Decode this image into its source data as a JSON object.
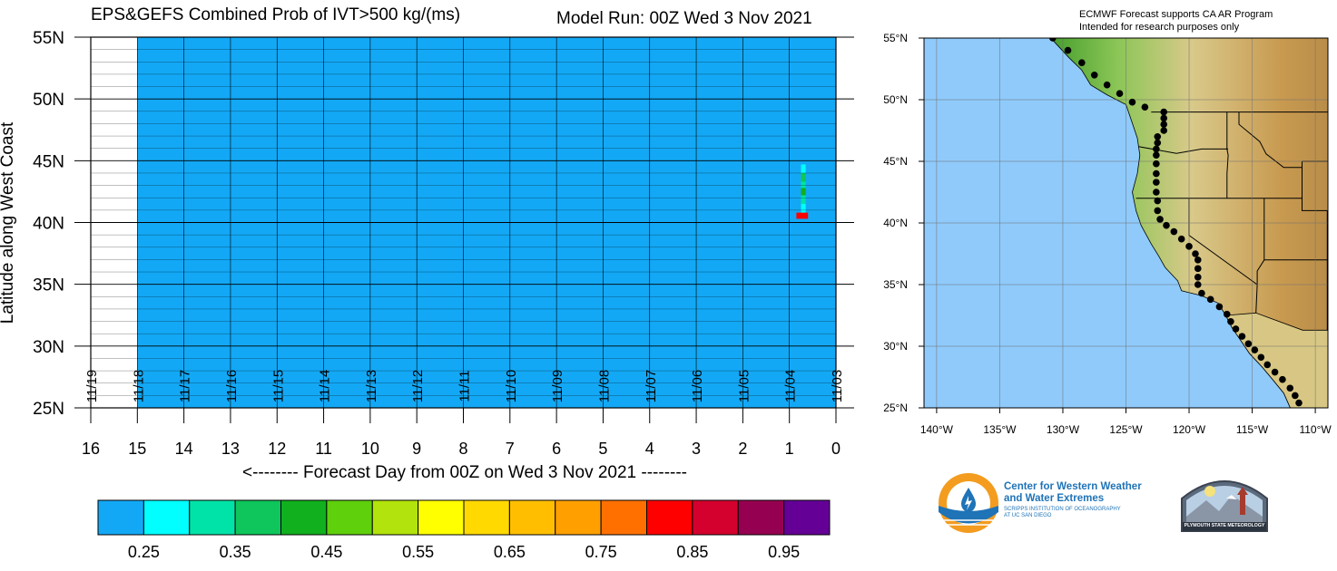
{
  "chart_data": [
    {
      "type": "heatmap",
      "title": "EPS&GEFS Combined Prob of IVT>500 kg/(ms)",
      "model_run": "Model Run: 00Z Wed 3 Nov 2021",
      "ylabel": "Latitude along West Coast",
      "xlabel": "<-------- Forecast Day from 00Z on Wed 3 Nov 2021 --------",
      "x_reversed": true,
      "xlim": [
        0,
        16
      ],
      "ylim": [
        25,
        55
      ],
      "y_ticks": [
        "25N",
        "30N",
        "35N",
        "40N",
        "45N",
        "50N",
        "55N"
      ],
      "y_tick_values": [
        25,
        30,
        35,
        40,
        45,
        50,
        55
      ],
      "x_ticks": [
        "0",
        "1",
        "2",
        "3",
        "4",
        "5",
        "6",
        "7",
        "8",
        "9",
        "10",
        "11",
        "12",
        "13",
        "14",
        "15",
        "16"
      ],
      "x_tick_values": [
        0,
        1,
        2,
        3,
        4,
        5,
        6,
        7,
        8,
        9,
        10,
        11,
        12,
        13,
        14,
        15,
        16
      ],
      "date_labels": [
        "11/03",
        "11/04",
        "11/05",
        "11/06",
        "11/07",
        "11/08",
        "11/09",
        "11/10",
        "11/11",
        "11/12",
        "11/13",
        "11/14",
        "11/15",
        "11/16",
        "11/17",
        "11/18",
        "11/19"
      ],
      "background_value_color": "#13a8f5",
      "filled_day_range": [
        0,
        15
      ],
      "cells": [
        {
          "day_start": 0.6,
          "day_end": 0.85,
          "lat_start": 40.3,
          "lat_end": 40.8,
          "color": "#ff0000"
        },
        {
          "day_start": 0.65,
          "day_end": 0.75,
          "lat_start": 40.8,
          "lat_end": 41.5,
          "color": "#02ffff"
        },
        {
          "day_start": 0.65,
          "day_end": 0.75,
          "lat_start": 41.5,
          "lat_end": 42.2,
          "color": "#00e3a8"
        },
        {
          "day_start": 0.65,
          "day_end": 0.75,
          "lat_start": 42.2,
          "lat_end": 42.8,
          "color": "#10b01e"
        },
        {
          "day_start": 0.65,
          "day_end": 0.75,
          "lat_start": 42.8,
          "lat_end": 43.3,
          "color": "#00e3a8"
        },
        {
          "day_start": 0.65,
          "day_end": 0.75,
          "lat_start": 43.3,
          "lat_end": 44.0,
          "color": "#0ec65b"
        },
        {
          "day_start": 0.65,
          "day_end": 0.75,
          "lat_start": 44.0,
          "lat_end": 44.7,
          "color": "#02ffff"
        }
      ]
    },
    {
      "type": "colorbar",
      "tick_labels": [
        "0.25",
        "0.35",
        "0.45",
        "0.55",
        "0.65",
        "0.75",
        "0.85",
        "0.95"
      ],
      "colors": [
        "#13a8f5",
        "#02ffff",
        "#00e3a8",
        "#0ec65b",
        "#10b01e",
        "#5fd00c",
        "#b2e30c",
        "#ffff00",
        "#ffd900",
        "#ffbf00",
        "#ffa000",
        "#ff7000",
        "#ff0000",
        "#d4002d",
        "#960050",
        "#640096"
      ]
    },
    {
      "type": "map",
      "lon_labels": [
        "140°W",
        "135°W",
        "130°W",
        "125°W",
        "120°W",
        "115°W",
        "110°W"
      ],
      "lon_values": [
        -140,
        -135,
        -130,
        -125,
        -120,
        -115,
        -110
      ],
      "lat_labels": [
        "25°N",
        "30°N",
        "35°N",
        "40°N",
        "45°N",
        "50°N",
        "55°N"
      ],
      "lat_values": [
        25,
        30,
        35,
        40,
        45,
        50,
        55
      ],
      "lon_range": [
        -141,
        -109
      ],
      "lat_range": [
        25,
        55
      ],
      "ocean_color": "#8fcafb",
      "land_color": "#c7c07a",
      "transect_points": [
        [
          -130.8,
          55.0
        ],
        [
          -129.6,
          54.0
        ],
        [
          -128.5,
          53.0
        ],
        [
          -127.5,
          52.0
        ],
        [
          -126.5,
          51.2
        ],
        [
          -125.5,
          50.5
        ],
        [
          -124.5,
          49.8
        ],
        [
          -123.5,
          49.4
        ],
        [
          -122.0,
          49.0
        ],
        [
          -122.0,
          48.5
        ],
        [
          -122.0,
          48.0
        ],
        [
          -122.0,
          47.5
        ],
        [
          -122.5,
          47.0
        ],
        [
          -122.5,
          46.5
        ],
        [
          -122.6,
          46.0
        ],
        [
          -122.6,
          45.5
        ],
        [
          -122.6,
          44.8
        ],
        [
          -122.6,
          44.0
        ],
        [
          -122.6,
          43.3
        ],
        [
          -122.6,
          42.5
        ],
        [
          -122.5,
          41.8
        ],
        [
          -122.5,
          41.0
        ],
        [
          -122.3,
          40.3
        ],
        [
          -121.8,
          39.8
        ],
        [
          -121.2,
          39.3
        ],
        [
          -120.6,
          38.7
        ],
        [
          -120.0,
          38.1
        ],
        [
          -119.5,
          37.5
        ],
        [
          -119.3,
          37.0
        ],
        [
          -119.3,
          36.3
        ],
        [
          -119.3,
          35.6
        ],
        [
          -119.3,
          35.0
        ],
        [
          -119.0,
          34.3
        ],
        [
          -118.3,
          33.8
        ],
        [
          -117.6,
          33.2
        ],
        [
          -117.0,
          32.6
        ],
        [
          -116.7,
          32.0
        ],
        [
          -116.3,
          31.4
        ],
        [
          -115.8,
          30.8
        ],
        [
          -115.3,
          30.2
        ],
        [
          -114.8,
          29.7
        ],
        [
          -114.3,
          29.1
        ],
        [
          -113.8,
          28.5
        ],
        [
          -113.2,
          27.9
        ],
        [
          -112.6,
          27.3
        ],
        [
          -112.0,
          26.6
        ],
        [
          -111.6,
          26.0
        ],
        [
          -111.3,
          25.4
        ]
      ]
    }
  ],
  "text": {
    "left_title": "EPS&GEFS Combined Prob of IVT>500 kg/(ms)",
    "model_run": "Model Run: 00Z Wed 3 Nov 2021",
    "map_note_line1": "ECMWF Forecast supports CA AR Program",
    "map_note_line2": "Intended for research purposes only",
    "logo_cw3e_line1": "Center for Western Weather",
    "logo_cw3e_line2": "and Water Extremes",
    "logo_cw3e_line3": "SCRIPPS INSTITUTION OF OCEANOGRAPHY",
    "logo_cw3e_line4": "AT UC SAN DIEGO",
    "logo_psu": "PLYMOUTH STATE METEOROLOGY"
  },
  "colors": {
    "cw3e_orange": "#f39c1f",
    "cw3e_blue": "#1f73b7",
    "cw3e_text": "#1f73b7"
  }
}
